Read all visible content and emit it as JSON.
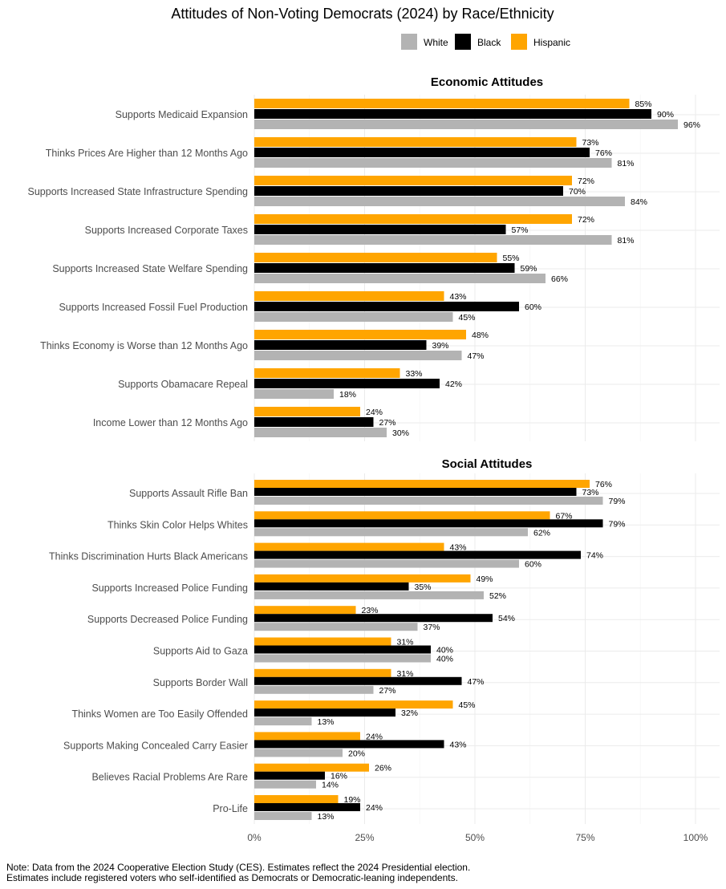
{
  "chart_data": {
    "type": "bar",
    "orientation": "horizontal",
    "title": "Attitudes of Non-Voting Democrats (2024) by Race/Ethnicity",
    "legend": {
      "placement": "top-right",
      "entries": [
        "White",
        "Black",
        "Hispanic"
      ]
    },
    "colors": {
      "White": "#b3b3b3",
      "Black": "#000000",
      "Hispanic": "#ffa500"
    },
    "xlim": [
      0,
      100
    ],
    "x_ticks": [
      "0%",
      "25%",
      "50%",
      "75%",
      "100%"
    ],
    "grid": true,
    "panels": [
      {
        "title": "Economic Attitudes",
        "categories": [
          "Supports Medicaid Expansion",
          "Thinks Prices Are Higher than 12 Months Ago",
          "Supports Increased State Infrastructure Spending",
          "Supports Increased Corporate Taxes",
          "Supports Increased State Welfare Spending",
          "Supports Increased Fossil Fuel Production",
          "Thinks Economy is Worse than 12 Months Ago",
          "Supports Obamacare Repeal",
          "Income Lower than 12 Months Ago"
        ],
        "series": [
          {
            "name": "Hispanic",
            "values": [
              85,
              73,
              72,
              72,
              55,
              43,
              48,
              33,
              24
            ]
          },
          {
            "name": "Black",
            "values": [
              90,
              76,
              70,
              57,
              59,
              60,
              39,
              42,
              27
            ]
          },
          {
            "name": "White",
            "values": [
              96,
              81,
              84,
              81,
              66,
              45,
              47,
              18,
              30
            ]
          }
        ]
      },
      {
        "title": "Social Attitudes",
        "categories": [
          "Supports Assault Rifle Ban",
          "Thinks Skin Color Helps Whites",
          "Thinks Discrimination Hurts Black Americans",
          "Supports Increased Police Funding",
          "Supports Decreased Police Funding",
          "Supports Aid to Gaza",
          "Supports Border Wall",
          "Thinks Women are Too Easily Offended",
          "Supports Making Concealed Carry Easier",
          "Believes Racial Problems Are Rare",
          "Pro-Life"
        ],
        "series": [
          {
            "name": "Hispanic",
            "values": [
              76,
              67,
              43,
              49,
              23,
              31,
              31,
              45,
              24,
              26,
              19
            ]
          },
          {
            "name": "Black",
            "values": [
              73,
              79,
              74,
              35,
              54,
              40,
              47,
              32,
              43,
              16,
              24
            ]
          },
          {
            "name": "White",
            "values": [
              79,
              62,
              60,
              52,
              37,
              40,
              27,
              13,
              20,
              14,
              13
            ]
          }
        ]
      }
    ]
  },
  "note": {
    "line1": "Note: Data from the 2024 Cooperative Election Study (CES). Estimates reflect the 2024 Presidential election.",
    "line2": "Estimates include registered voters who self-identified as Democrats or Democratic-leaning independents."
  }
}
